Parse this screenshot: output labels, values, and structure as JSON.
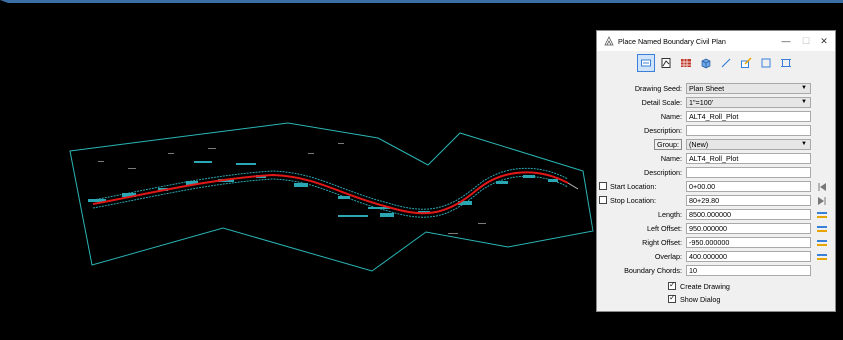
{
  "dialog": {
    "title": "Place Named Boundary Civil Plan",
    "buttons": {
      "minimize": "—",
      "maximize": "☐",
      "close": "✕"
    },
    "tools": [
      "civil-plan-tool",
      "civil-profile-tool",
      "cross-section-tool",
      "3d-cut-tool",
      "from-element-tool",
      "draw-boundary-tool",
      "rectangle-tool",
      "clip-tool"
    ],
    "fields": {
      "drawing_seed": {
        "label": "Drawing Seed:",
        "value": "Plan Sheet"
      },
      "detail_scale": {
        "label": "Detail Scale:",
        "value": "1\"=100'"
      },
      "name": {
        "label": "Name:",
        "value": "ALT4_Roll_Plot"
      },
      "description": {
        "label": "Description:",
        "value": ""
      },
      "group": {
        "label": "Group:",
        "value": "(New)"
      },
      "group_name": {
        "label": "Name:",
        "value": "ALT4_Roll_Plot"
      },
      "group_description": {
        "label": "Description:",
        "value": ""
      },
      "start_location": {
        "label": "Start Location:",
        "value": "0+00.00"
      },
      "stop_location": {
        "label": "Stop Location:",
        "value": "80+29.80"
      },
      "length": {
        "label": "Length:",
        "value": "8500.000000"
      },
      "left_offset": {
        "label": "Left Offset:",
        "value": "950.000000"
      },
      "right_offset": {
        "label": "Right Offset:",
        "value": "-950.000000"
      },
      "overlap": {
        "label": "Overlap:",
        "value": "400.000000"
      },
      "boundary_chords": {
        "label": "Boundary Chords:",
        "value": "10"
      }
    },
    "checkboxes": {
      "create_drawing": {
        "label": "Create Drawing",
        "checked": true
      },
      "show_dialog": {
        "label": "Show Dialog",
        "checked": true
      }
    }
  },
  "colors": {
    "boundary": "#2bb5b5",
    "alignment": "#e01818",
    "accent": "#3b80d8"
  }
}
